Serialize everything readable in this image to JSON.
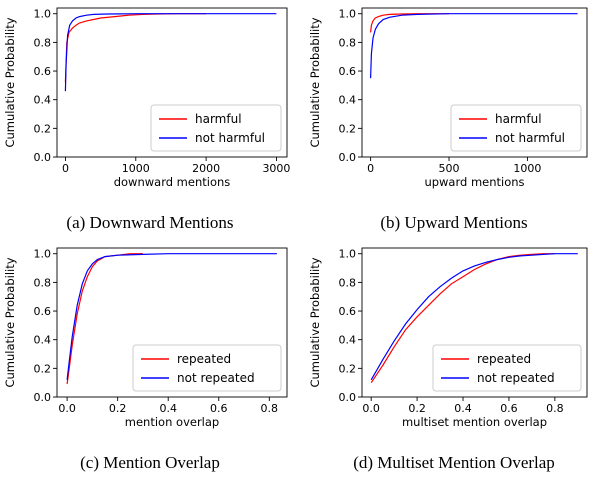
{
  "chart_data": [
    {
      "type": "line",
      "caption": "(a) Downward Mentions",
      "xlabel": "downward mentions",
      "ylabel": "Cumulative Probability",
      "xlim": [
        -120,
        3150
      ],
      "ylim": [
        0,
        1.04
      ],
      "xticks": [
        0,
        1000,
        2000,
        3000
      ],
      "xtick_labels": [
        "0",
        "1000",
        "2000",
        "3000"
      ],
      "yticks": [
        0,
        0.2,
        0.4,
        0.6,
        0.8,
        1.0
      ],
      "ytick_labels": [
        "0.0",
        "0.2",
        "0.4",
        "0.6",
        "0.8",
        "1.0"
      ],
      "legend": "bottom-right",
      "grid": false,
      "series": [
        {
          "name": "harmful",
          "color": "#ff0000",
          "x": [
            0,
            20,
            50,
            100,
            150,
            200,
            300,
            400,
            500,
            700,
            900,
            1100,
            1300,
            1600,
            2000
          ],
          "y": [
            0.52,
            0.8,
            0.87,
            0.9,
            0.92,
            0.935,
            0.95,
            0.96,
            0.97,
            0.98,
            0.99,
            0.995,
            0.998,
            1.0,
            1.0
          ]
        },
        {
          "name": "not harmful",
          "color": "#0000ff",
          "x": [
            0,
            10,
            30,
            60,
            100,
            150,
            200,
            300,
            400,
            600,
            800,
            1000,
            1500,
            2000,
            2500,
            3000
          ],
          "y": [
            0.46,
            0.65,
            0.85,
            0.92,
            0.95,
            0.97,
            0.98,
            0.99,
            0.995,
            0.998,
            0.999,
            1.0,
            1.0,
            1.0,
            1.0,
            1.0
          ]
        }
      ]
    },
    {
      "type": "line",
      "caption": "(b) Upward Mentions",
      "xlabel": "upward mentions",
      "ylabel": "Cumulative Probability",
      "xlim": [
        -55,
        1380
      ],
      "ylim": [
        0,
        1.04
      ],
      "xticks": [
        0,
        500,
        1000
      ],
      "xtick_labels": [
        "0",
        "500",
        "1000"
      ],
      "yticks": [
        0,
        0.2,
        0.4,
        0.6,
        0.8,
        1.0
      ],
      "ytick_labels": [
        "0.0",
        "0.2",
        "0.4",
        "0.6",
        "0.8",
        "1.0"
      ],
      "legend": "bottom-right",
      "grid": false,
      "series": [
        {
          "name": "harmful",
          "color": "#ff0000",
          "x": [
            0,
            5,
            15,
            30,
            50,
            80,
            120,
            200,
            300,
            400,
            500
          ],
          "y": [
            0.87,
            0.92,
            0.95,
            0.97,
            0.98,
            0.99,
            0.995,
            0.998,
            1.0,
            1.0,
            1.0
          ]
        },
        {
          "name": "not harmful",
          "color": "#0000ff",
          "x": [
            0,
            5,
            15,
            30,
            50,
            80,
            120,
            200,
            300,
            500,
            800,
            1100,
            1320
          ],
          "y": [
            0.55,
            0.72,
            0.83,
            0.89,
            0.93,
            0.96,
            0.975,
            0.99,
            0.995,
            1.0,
            1.0,
            1.0,
            1.0
          ]
        }
      ]
    },
    {
      "type": "line",
      "caption": "(c) Mention Overlap",
      "xlabel": "mention overlap",
      "ylabel": "Cumulative Probability",
      "xlim": [
        -0.04,
        0.87
      ],
      "ylim": [
        0,
        1.04
      ],
      "xticks": [
        0,
        0.2,
        0.4,
        0.6,
        0.8
      ],
      "xtick_labels": [
        "0.0",
        "0.2",
        "0.4",
        "0.6",
        "0.8"
      ],
      "yticks": [
        0,
        0.2,
        0.4,
        0.6,
        0.8,
        1.0
      ],
      "ytick_labels": [
        "0.0",
        "0.2",
        "0.4",
        "0.6",
        "0.8",
        "1.0"
      ],
      "legend": "bottom-right",
      "grid": false,
      "series": [
        {
          "name": "repeated",
          "color": "#ff0000",
          "x": [
            0,
            0.01,
            0.02,
            0.04,
            0.06,
            0.08,
            0.1,
            0.12,
            0.15,
            0.2,
            0.25,
            0.3
          ],
          "y": [
            0.09,
            0.22,
            0.36,
            0.58,
            0.74,
            0.84,
            0.91,
            0.95,
            0.98,
            0.99,
            1.0,
            1.0
          ]
        },
        {
          "name": "not repeated",
          "color": "#0000ff",
          "x": [
            0,
            0.01,
            0.02,
            0.04,
            0.06,
            0.08,
            0.1,
            0.12,
            0.15,
            0.2,
            0.3,
            0.4,
            0.6,
            0.83
          ],
          "y": [
            0.12,
            0.27,
            0.42,
            0.64,
            0.79,
            0.88,
            0.93,
            0.96,
            0.98,
            0.99,
            0.995,
            1.0,
            1.0,
            1.0
          ]
        }
      ]
    },
    {
      "type": "line",
      "caption": "(d) Multiset Mention Overlap",
      "xlabel": "multiset mention overlap",
      "ylabel": "Cumulative Probability",
      "xlim": [
        -0.04,
        0.94
      ],
      "ylim": [
        0,
        1.04
      ],
      "xticks": [
        0,
        0.2,
        0.4,
        0.6,
        0.8
      ],
      "xtick_labels": [
        "0.0",
        "0.2",
        "0.4",
        "0.6",
        "0.8"
      ],
      "yticks": [
        0,
        0.2,
        0.4,
        0.6,
        0.8,
        1.0
      ],
      "ytick_labels": [
        "0.0",
        "0.2",
        "0.4",
        "0.6",
        "0.8",
        "1.0"
      ],
      "legend": "bottom-right",
      "grid": false,
      "series": [
        {
          "name": "repeated",
          "color": "#ff0000",
          "x": [
            0,
            0.05,
            0.1,
            0.15,
            0.2,
            0.25,
            0.3,
            0.35,
            0.4,
            0.45,
            0.5,
            0.55,
            0.6,
            0.65,
            0.7,
            0.75,
            0.8
          ],
          "y": [
            0.1,
            0.22,
            0.35,
            0.47,
            0.56,
            0.64,
            0.72,
            0.79,
            0.84,
            0.89,
            0.93,
            0.96,
            0.98,
            0.99,
            0.995,
            1.0,
            1.0
          ]
        },
        {
          "name": "not repeated",
          "color": "#0000ff",
          "x": [
            0,
            0.05,
            0.1,
            0.15,
            0.2,
            0.25,
            0.3,
            0.35,
            0.4,
            0.45,
            0.5,
            0.55,
            0.6,
            0.65,
            0.7,
            0.75,
            0.8,
            0.9
          ],
          "y": [
            0.12,
            0.26,
            0.39,
            0.51,
            0.61,
            0.7,
            0.77,
            0.83,
            0.88,
            0.915,
            0.94,
            0.96,
            0.975,
            0.985,
            0.99,
            0.995,
            1.0,
            1.0
          ]
        }
      ]
    }
  ]
}
